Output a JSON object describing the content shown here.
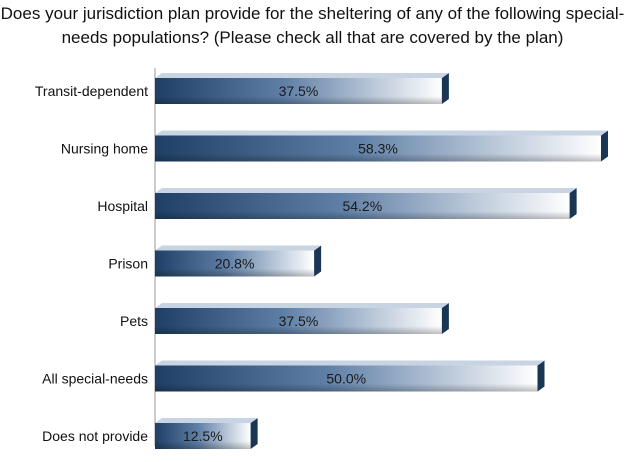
{
  "chart_data": {
    "type": "bar",
    "orientation": "horizontal",
    "title": "Does your jurisdiction plan provide for the sheltering of any of the following special-needs populations? (Please check all that are covered by the plan)",
    "xlabel": "",
    "ylabel": "",
    "categories": [
      "Transit-dependent",
      "Nursing home",
      "Hospital",
      "Prison",
      "Pets",
      "All special-needs",
      "Does not provide"
    ],
    "values": [
      37.5,
      58.3,
      54.2,
      20.8,
      37.5,
      50.0,
      12.5
    ],
    "value_labels": [
      "37.5%",
      "58.3%",
      "54.2%",
      "20.8%",
      "37.5%",
      "50.0%",
      "12.5%"
    ],
    "xlim": [
      0,
      60
    ],
    "unit": "%",
    "grid": false,
    "legend": "none",
    "colors": {
      "bar_dark": "#1f3f66",
      "bar_mid": "#5f7fa6",
      "bar_light": "#ffffff",
      "bar_end": "#1a3556",
      "axis": "#999999"
    }
  }
}
